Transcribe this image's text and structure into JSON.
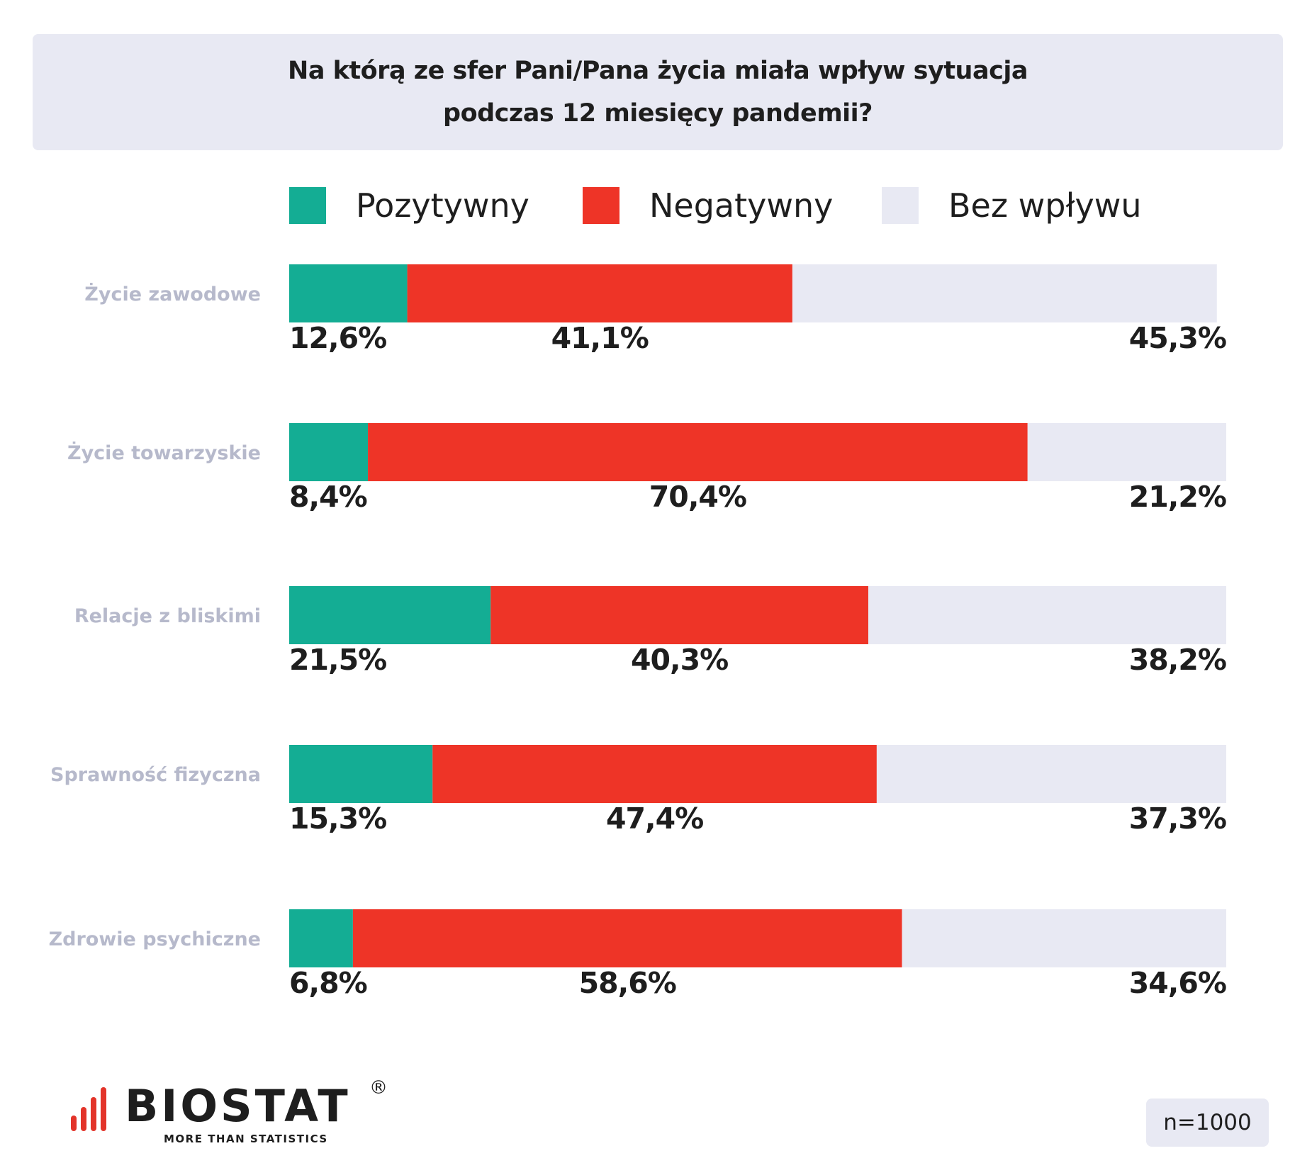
{
  "title": {
    "line1": "Na którą ze sfer Pani/Pana życia miała wpływ sytuacja",
    "line2": "podczas 12 miesięcy pandemii?"
  },
  "legend": [
    {
      "label": "Pozytywny",
      "color": "#14ad94"
    },
    {
      "label": "Negatywny",
      "color": "#ee3427"
    },
    {
      "label": "Bez wpływu",
      "color": "#e8e9f3"
    }
  ],
  "chart_data": {
    "type": "bar",
    "orientation": "horizontal",
    "stacked": true,
    "categories": [
      "Życie zawodowe",
      "Życie towarzyskie",
      "Relacje z bliskimi",
      "Sprawność fizyczna",
      "Zdrowie psychiczne"
    ],
    "series": [
      {
        "name": "Pozytywny",
        "values": [
          12.6,
          8.4,
          21.5,
          15.3,
          6.8
        ],
        "labels": [
          "12,6%",
          "8,4%",
          "21,5%",
          "15,3%",
          "6,8%"
        ]
      },
      {
        "name": "Negatywny",
        "values": [
          41.1,
          70.4,
          40.3,
          47.4,
          58.6
        ],
        "labels": [
          "41,1%",
          "70,4%",
          "40,3%",
          "47,4%",
          "58,6%"
        ]
      },
      {
        "name": "Bez wpływu",
        "values": [
          45.3,
          21.2,
          38.2,
          37.3,
          34.6
        ],
        "labels": [
          "45,3%",
          "21,2%",
          "38,2%",
          "37,3%",
          "34,6%"
        ]
      }
    ],
    "xlim": [
      0,
      100
    ],
    "legend_position": "top",
    "grid": false
  },
  "colors": {
    "positive": "#14ad94",
    "negative": "#ee3427",
    "neutral": "#e8e9f3",
    "logo_red": "#e3342a"
  },
  "logo": {
    "name": "BIOSTAT",
    "registered": "®",
    "tagline": "MORE THAN STATISTICS"
  },
  "sample": "n=1000"
}
